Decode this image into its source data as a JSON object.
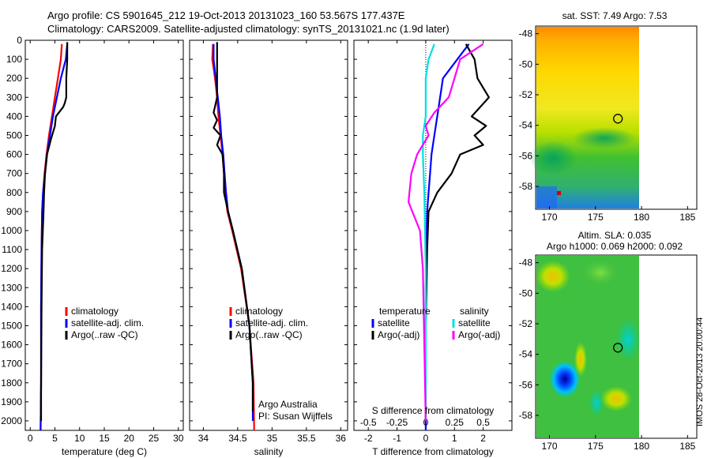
{
  "header": {
    "line1": "Argo profile: CS 5901645_212 19-Oct-2013 20131023_160 53.567S 177.437E",
    "line2": "Climatology: CARS2009. Satellite-adjusted climatology: synTS_20131021.nc (1.9d later)"
  },
  "side_label": "IMOS 28-Oct-2013 20:00:44",
  "colors": {
    "climatology": "#ff0000",
    "satellite": "#0000ff",
    "argo": "#000000",
    "sal_satellite": "#00e0e0",
    "sal_argo": "#ff00ff"
  },
  "chart_data": [
    {
      "type": "line",
      "id": "temperature",
      "xlabel": "temperature (deg C)",
      "xlim": [
        -1,
        31
      ],
      "ylim": [
        0,
        2050
      ],
      "xticks": [
        0,
        5,
        10,
        15,
        20,
        25,
        30
      ],
      "yticks": [
        0,
        100,
        200,
        300,
        400,
        500,
        600,
        700,
        800,
        900,
        1000,
        1100,
        1200,
        1300,
        1400,
        1500,
        1600,
        1700,
        1800,
        1900,
        2000
      ],
      "legend": [
        "climatology",
        "satellite-adj. clim.",
        "Argo(..raw -QC)"
      ],
      "series": [
        {
          "name": "climatology",
          "color": "#ff0000",
          "x": [
            6.4,
            6.2,
            5.6,
            5.0,
            4.4,
            3.8,
            3.3,
            2.9,
            2.6,
            2.4,
            2.3,
            2.2,
            2.2,
            2.1
          ],
          "y": [
            20,
            100,
            200,
            300,
            400,
            500,
            600,
            700,
            800,
            900,
            1100,
            1400,
            1800,
            2050
          ]
        },
        {
          "name": "satellite-adj. clim.",
          "color": "#0000ff",
          "x": [
            7.5,
            7.2,
            6.2,
            5.4,
            4.6,
            4.0,
            3.4,
            3.0,
            2.6,
            2.4,
            2.3,
            2.2,
            2.2,
            2.1
          ],
          "y": [
            20,
            100,
            200,
            300,
            400,
            500,
            600,
            700,
            800,
            900,
            1100,
            1400,
            1800,
            2050
          ]
        },
        {
          "name": "Argo(..raw -QC)",
          "color": "#000000",
          "x": [
            7.5,
            7.5,
            7.3,
            7.3,
            7.0,
            6.7,
            5.2,
            5.0,
            4.2,
            3.4,
            3.0,
            2.8,
            2.7,
            2.4,
            2.3,
            2.2,
            2.2
          ],
          "y": [
            10,
            100,
            200,
            300,
            330,
            350,
            400,
            450,
            520,
            600,
            700,
            800,
            900,
            1100,
            1400,
            1800,
            2000
          ]
        }
      ]
    },
    {
      "type": "line",
      "id": "salinity",
      "xlabel": "salinity",
      "xlim": [
        33.8,
        36.1
      ],
      "ylim": [
        0,
        2050
      ],
      "xticks": [
        34,
        34.5,
        35,
        35.5,
        36
      ],
      "xtick_labels": [
        "34",
        "34.5",
        "35",
        "35.5",
        "36"
      ],
      "legend": [
        "climatology",
        "satellite-adj. clim.",
        "Argo(..raw -QC)"
      ],
      "annotation": [
        "Argo Australia",
        "PI: Susan Wijffels"
      ],
      "series": [
        {
          "name": "climatology",
          "color": "#ff0000",
          "x": [
            34.14,
            34.13,
            34.17,
            34.2,
            34.22,
            34.25,
            34.28,
            34.3,
            34.32,
            34.35,
            34.42,
            34.55,
            34.67,
            34.73,
            34.74
          ],
          "y": [
            20,
            100,
            200,
            300,
            400,
            500,
            600,
            700,
            800,
            900,
            1000,
            1200,
            1500,
            1800,
            2050
          ]
        },
        {
          "name": "satellite-adj. clim.",
          "color": "#0000ff",
          "x": [
            34.15,
            34.15,
            34.18,
            34.21,
            34.24,
            34.26,
            34.29,
            34.31,
            34.33,
            34.36,
            34.43,
            34.56,
            34.67,
            34.72,
            34.72
          ],
          "y": [
            20,
            100,
            200,
            300,
            400,
            500,
            600,
            700,
            800,
            900,
            1000,
            1200,
            1500,
            1800,
            2000
          ]
        },
        {
          "name": "Argo(..raw -QC)",
          "color": "#000000",
          "x": [
            34.2,
            34.2,
            34.2,
            34.2,
            34.15,
            34.2,
            34.15,
            34.25,
            34.2,
            34.28,
            34.3,
            34.3,
            34.33,
            34.36,
            34.43,
            34.56,
            34.67,
            34.72,
            34.72
          ],
          "y": [
            10,
            100,
            200,
            300,
            380,
            420,
            460,
            500,
            550,
            600,
            700,
            800,
            850,
            900,
            1000,
            1200,
            1500,
            1800,
            1950
          ]
        }
      ]
    },
    {
      "type": "line",
      "id": "difference",
      "xlabel": "T difference from climatology",
      "xlabel_top": "S difference from climatology",
      "xlim": [
        -2.5,
        3.0
      ],
      "ylim": [
        0,
        2050
      ],
      "xticks": [
        -2,
        -1,
        0,
        1,
        2
      ],
      "sxticks": [
        -0.5,
        -0.25,
        0,
        0.25,
        0.5
      ],
      "sxtick_labels": [
        "-0.5",
        "-0.25",
        "0",
        "0.25",
        "0.5"
      ],
      "legend": {
        "temperature_title": "temperature",
        "salinity_title": "salinity",
        "items": [
          "satellite",
          "Argo(-adj)",
          "satellite",
          "Argo(-adj)"
        ]
      },
      "series": [
        {
          "name": "satellite",
          "color": "#0000ff",
          "x": [
            1.5,
            1.1,
            0.6,
            0.5,
            0.4,
            0.3,
            0.2,
            0.15,
            0.1,
            0.05,
            0.0,
            0.0
          ],
          "y": [
            20,
            100,
            200,
            300,
            400,
            500,
            600,
            700,
            800,
            900,
            1300,
            2050
          ]
        },
        {
          "name": "Argo(-adj)",
          "color": "#000000",
          "x": [
            1.4,
            1.7,
            1.8,
            2.2,
            1.6,
            2.1,
            1.7,
            2.0,
            1.2,
            0.9,
            0.4,
            0.1,
            0.05,
            0.0,
            0.0
          ],
          "y": [
            20,
            100,
            200,
            300,
            400,
            450,
            500,
            550,
            600,
            700,
            800,
            900,
            1100,
            1500,
            2000
          ]
        },
        {
          "name": "satellite",
          "color": "#00e0e0",
          "x": [
            0.3,
            0.1,
            0.0,
            0.0,
            0.0,
            -0.1,
            -0.1,
            -0.05,
            0.0,
            0.0
          ],
          "y": [
            20,
            100,
            200,
            300,
            400,
            500,
            600,
            800,
            1200,
            2000
          ]
        },
        {
          "name": "Argo(-adj)",
          "color": "#ff00ff",
          "x": [
            2.0,
            1.2,
            1.0,
            0.8,
            0.3,
            0.0,
            0.1,
            -0.3,
            -0.5,
            -0.6,
            -0.2,
            -0.1,
            0.0
          ],
          "y": [
            20,
            100,
            200,
            300,
            380,
            450,
            500,
            600,
            700,
            850,
            1000,
            1200,
            2000
          ]
        }
      ]
    },
    {
      "type": "heatmap",
      "id": "sst-map",
      "title": "sat. SST: 7.49 Argo: 7.53",
      "xlim": [
        168.5,
        186
      ],
      "ylim": [
        -59.5,
        -47.5
      ],
      "xticks": [
        170,
        175,
        180,
        185
      ],
      "yticks": [
        -48,
        -50,
        -52,
        -54,
        -56,
        -58
      ],
      "marker": {
        "lon": 177.437,
        "lat": -53.567
      }
    },
    {
      "type": "heatmap",
      "id": "sla-map",
      "title_line1": "Altim. SLA: 0.035",
      "title_line2": "Argo h1000: 0.069 h2000: 0.092",
      "xlim": [
        168.5,
        186
      ],
      "ylim": [
        -59.5,
        -47.5
      ],
      "xticks": [
        170,
        175,
        180,
        185
      ],
      "yticks": [
        -48,
        -50,
        -52,
        -54,
        -56,
        -58
      ],
      "marker": {
        "lon": 177.437,
        "lat": -53.567
      }
    }
  ]
}
